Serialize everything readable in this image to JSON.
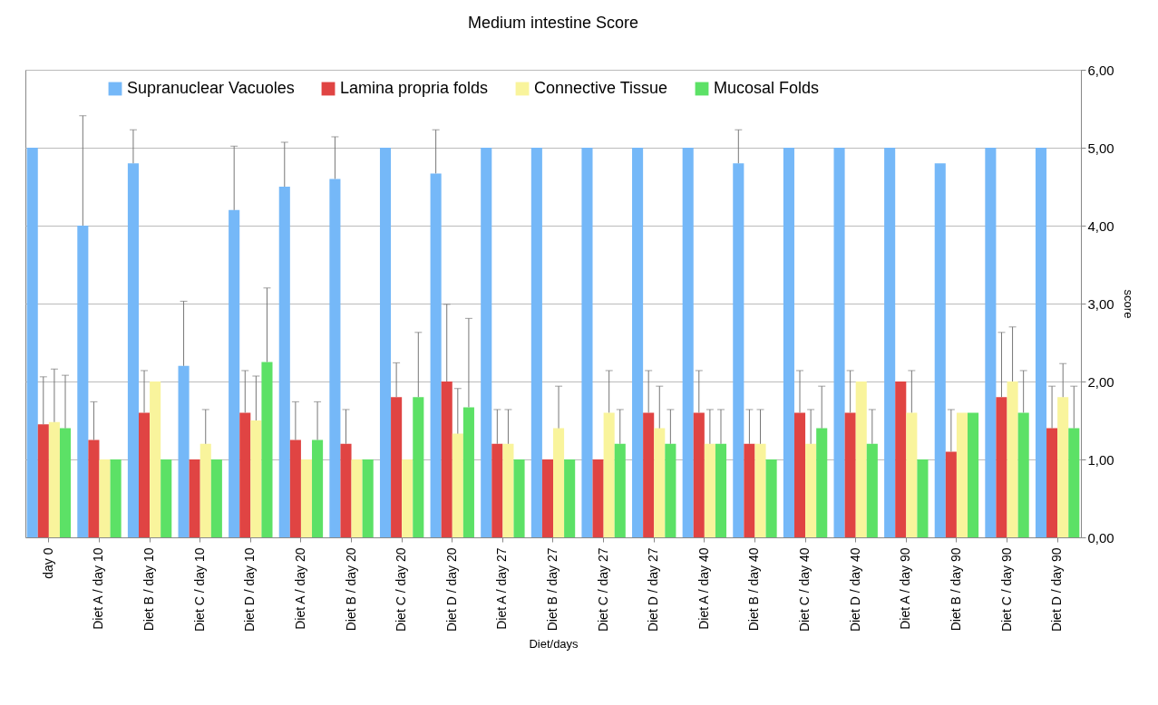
{
  "chart_data": {
    "type": "bar",
    "title": "Medium intestine Score",
    "xlabel": "Diet/days",
    "ylabel": "score",
    "categories": [
      "day 0",
      "Diet A / day 10",
      "Diet B / day 10",
      "Diet C / day 10",
      "Diet D / day 10",
      "Diet A / day 20",
      "Diet B / day 20",
      "Diet C / day 20",
      "Diet D / day 20",
      "Diet A / day 27",
      "Diet B / day 27",
      "Diet C / day 27",
      "Diet D / day 27",
      "Diet A / day 40",
      "Diet B / day 40",
      "Diet C / day 40",
      "Diet D / day 40",
      "Diet A / day 90",
      "Diet B / day 90",
      "Diet C / day 90",
      "Diet D / day 90"
    ],
    "series": [
      {
        "name": "Supranuclear Vacuoles",
        "color": "#75b8f8",
        "values": [
          5,
          4.0,
          4.8,
          2.2,
          4.2,
          4.5,
          4.6,
          5,
          4.67,
          5,
          5,
          5,
          5,
          5,
          4.8,
          5,
          5,
          5,
          4.8,
          5,
          5
        ],
        "errors": [
          null,
          [
            4.0,
            5.41
          ],
          [
            4.8,
            5.23
          ],
          [
            2.2,
            3.03
          ],
          [
            4.2,
            5.02
          ],
          [
            4.5,
            5.07
          ],
          [
            4.6,
            5.14
          ],
          null,
          [
            4.67,
            5.23
          ],
          null,
          null,
          null,
          null,
          null,
          [
            4.8,
            5.23
          ],
          null,
          null,
          null,
          null,
          null,
          null
        ]
      },
      {
        "name": "Lamina propria folds",
        "color": "#e04443",
        "values": [
          1.45,
          1.25,
          1.6,
          1.0,
          1.6,
          1.25,
          1.2,
          1.8,
          2.0,
          1.2,
          1.0,
          1.0,
          1.6,
          1.6,
          1.2,
          1.6,
          1.6,
          2.0,
          1.1,
          1.8,
          1.4
        ],
        "errors": [
          [
            1.45,
            2.06
          ],
          [
            1.25,
            1.74
          ],
          [
            1.6,
            2.14
          ],
          null,
          [
            1.6,
            2.14
          ],
          [
            1.25,
            1.74
          ],
          [
            1.2,
            1.64
          ],
          [
            1.8,
            2.24
          ],
          [
            2.0,
            2.99
          ],
          [
            1.2,
            1.64
          ],
          null,
          null,
          [
            1.6,
            2.14
          ],
          [
            1.6,
            2.14
          ],
          [
            1.2,
            1.64
          ],
          [
            1.6,
            2.14
          ],
          [
            1.6,
            2.14
          ],
          null,
          [
            1.1,
            1.64
          ],
          [
            1.8,
            2.63
          ],
          [
            1.4,
            1.94
          ]
        ]
      },
      {
        "name": "Connective Tissue",
        "color": "#f9f49c",
        "values": [
          1.48,
          1.0,
          2.0,
          1.2,
          1.5,
          1.0,
          1.0,
          1.0,
          1.33,
          1.2,
          1.4,
          1.6,
          1.4,
          1.2,
          1.2,
          1.2,
          2.0,
          1.6,
          1.6,
          2.0,
          1.8
        ],
        "errors": [
          [
            1.48,
            2.16
          ],
          null,
          null,
          [
            1.2,
            1.64
          ],
          [
            1.5,
            2.07
          ],
          null,
          null,
          null,
          [
            1.33,
            1.91
          ],
          [
            1.2,
            1.64
          ],
          [
            1.4,
            1.94
          ],
          [
            1.6,
            2.14
          ],
          [
            1.4,
            1.94
          ],
          [
            1.2,
            1.64
          ],
          [
            1.2,
            1.64
          ],
          [
            1.2,
            1.64
          ],
          null,
          [
            1.6,
            2.14
          ],
          null,
          [
            2.0,
            2.7
          ],
          [
            1.8,
            2.23
          ]
        ]
      },
      {
        "name": "Mucosal Folds",
        "color": "#5ce166",
        "values": [
          1.4,
          1.0,
          1.0,
          1.0,
          2.25,
          1.25,
          1.0,
          1.8,
          1.67,
          1.0,
          1.0,
          1.2,
          1.2,
          1.2,
          1.0,
          1.4,
          1.2,
          1.0,
          1.6,
          1.6,
          1.4
        ],
        "errors": [
          [
            1.4,
            2.08
          ],
          null,
          null,
          null,
          [
            2.25,
            3.2
          ],
          [
            1.25,
            1.74
          ],
          null,
          [
            1.8,
            2.63
          ],
          [
            1.67,
            2.81
          ],
          null,
          null,
          [
            1.2,
            1.64
          ],
          [
            1.2,
            1.64
          ],
          [
            1.2,
            1.64
          ],
          null,
          [
            1.4,
            1.94
          ],
          [
            1.2,
            1.64
          ],
          null,
          null,
          [
            1.6,
            2.14
          ],
          [
            1.4,
            1.94
          ]
        ]
      }
    ],
    "ylim": [
      0,
      6
    ],
    "yticks": [
      {
        "value": 0,
        "label": "0,00"
      },
      {
        "value": 1,
        "label": "1,00"
      },
      {
        "value": 2,
        "label": "2,00"
      },
      {
        "value": 3,
        "label": "3,00"
      },
      {
        "value": 4,
        "label": "4,00"
      },
      {
        "value": 5,
        "label": "5,00"
      },
      {
        "value": 6,
        "label": "6,00"
      }
    ],
    "grid": "y",
    "legend": "top"
  }
}
